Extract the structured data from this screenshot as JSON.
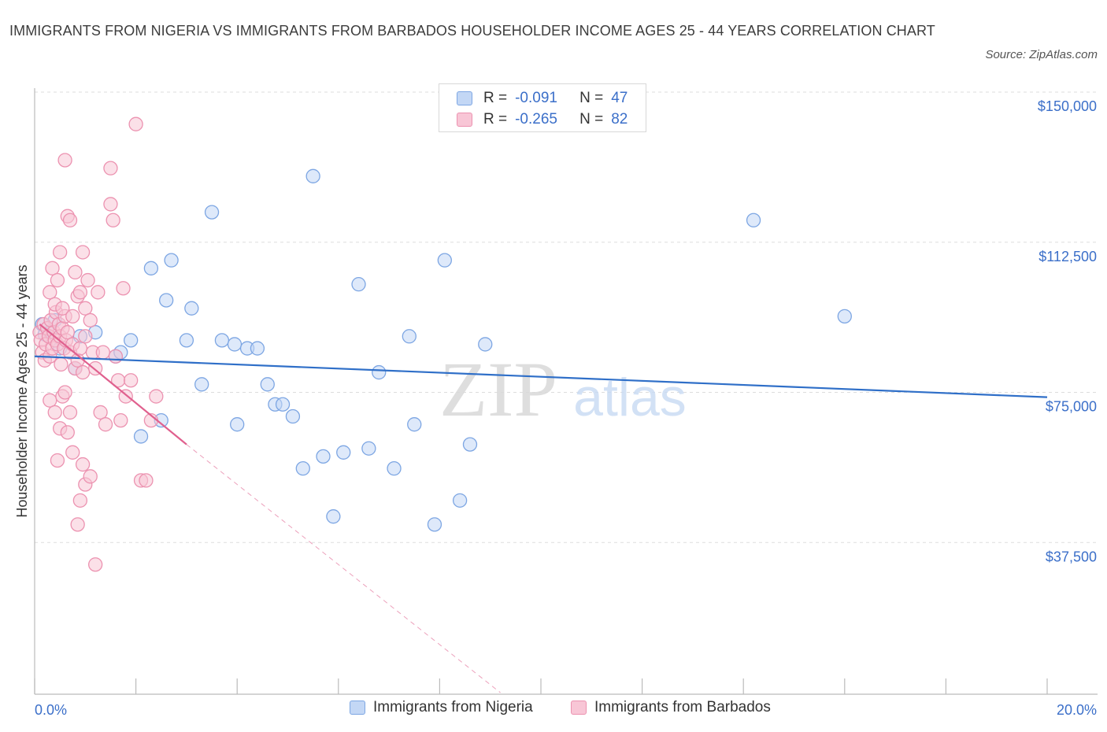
{
  "title": "IMMIGRANTS FROM NIGERIA VS IMMIGRANTS FROM BARBADOS HOUSEHOLDER INCOME AGES 25 - 44 YEARS CORRELATION CHART",
  "source": "Source: ZipAtlas.com",
  "watermark": {
    "zip": "ZIP",
    "atlas": "atlas"
  },
  "legend": {
    "rows": [
      {
        "r_label": "R =",
        "r_value": "-0.091",
        "n_label": "N =",
        "n_value": "47"
      },
      {
        "r_label": "R =",
        "r_value": "-0.265",
        "n_label": "N =",
        "n_value": "82"
      }
    ]
  },
  "bottom_legend": [
    "Immigrants from Nigeria",
    "Immigrants from Barbados"
  ],
  "colors": {
    "nigeria_fill": "#c3d7f5",
    "nigeria_stroke": "#7da6e3",
    "nigeria_line": "#2f6fc8",
    "barbados_fill": "#f8c6d6",
    "barbados_stroke": "#ec92b0",
    "barbados_line": "#e0608e",
    "tick_text": "#3b6fc9",
    "grid": "#dddddd"
  },
  "chart_data": {
    "type": "scatter",
    "title": "IMMIGRANTS FROM NIGERIA VS IMMIGRANTS FROM BARBADOS HOUSEHOLDER INCOME AGES 25 - 44 YEARS CORRELATION CHART",
    "xlabel": "",
    "ylabel": "Householder Income Ages 25 - 44 years",
    "xlim": [
      0,
      20
    ],
    "ylim": [
      0,
      150000
    ],
    "x_tick_labels": [
      {
        "value": 0,
        "label": "0.0%"
      },
      {
        "value": 20,
        "label": "20.0%"
      }
    ],
    "y_ticks": [
      {
        "value": 37500,
        "label": "$37,500"
      },
      {
        "value": 75000,
        "label": "$75,000"
      },
      {
        "value": 112500,
        "label": "$112,500"
      },
      {
        "value": 150000,
        "label": "$150,000"
      }
    ],
    "series": [
      {
        "name": "Immigrants from Nigeria",
        "points": [
          [
            0.15,
            92000
          ],
          [
            0.3,
            90000
          ],
          [
            0.4,
            93000
          ],
          [
            0.5,
            86000
          ],
          [
            0.8,
            81000
          ],
          [
            1.2,
            90000
          ],
          [
            0.9,
            89000
          ],
          [
            1.6,
            84000
          ],
          [
            1.7,
            85000
          ],
          [
            1.9,
            88000
          ],
          [
            2.1,
            64000
          ],
          [
            2.3,
            106000
          ],
          [
            2.5,
            68000
          ],
          [
            2.6,
            98000
          ],
          [
            2.7,
            108000
          ],
          [
            3.0,
            88000
          ],
          [
            3.1,
            96000
          ],
          [
            3.3,
            77000
          ],
          [
            3.5,
            120000
          ],
          [
            3.7,
            88000
          ],
          [
            3.95,
            87000
          ],
          [
            4.0,
            67000
          ],
          [
            4.2,
            86000
          ],
          [
            4.4,
            86000
          ],
          [
            4.6,
            77000
          ],
          [
            4.75,
            72000
          ],
          [
            4.9,
            72000
          ],
          [
            5.1,
            69000
          ],
          [
            5.3,
            56000
          ],
          [
            5.5,
            129000
          ],
          [
            5.7,
            59000
          ],
          [
            5.9,
            44000
          ],
          [
            6.1,
            60000
          ],
          [
            6.4,
            102000
          ],
          [
            6.6,
            61000
          ],
          [
            6.8,
            80000
          ],
          [
            7.1,
            56000
          ],
          [
            7.4,
            89000
          ],
          [
            7.5,
            67000
          ],
          [
            7.9,
            42000
          ],
          [
            8.1,
            108000
          ],
          [
            8.4,
            48000
          ],
          [
            8.6,
            62000
          ],
          [
            8.9,
            87000
          ],
          [
            14.2,
            118000
          ],
          [
            16.0,
            94000
          ],
          [
            0.2,
            89500
          ]
        ]
      },
      {
        "name": "Immigrants from Barbados",
        "points": [
          [
            0.1,
            90000
          ],
          [
            0.12,
            88000
          ],
          [
            0.15,
            85000
          ],
          [
            0.18,
            92000
          ],
          [
            0.2,
            83000
          ],
          [
            0.22,
            87000
          ],
          [
            0.25,
            91000
          ],
          [
            0.28,
            89000
          ],
          [
            0.3,
            84000
          ],
          [
            0.32,
            93000
          ],
          [
            0.35,
            86000
          ],
          [
            0.38,
            90000
          ],
          [
            0.4,
            88000
          ],
          [
            0.42,
            95000
          ],
          [
            0.45,
            87000
          ],
          [
            0.48,
            92000
          ],
          [
            0.5,
            89000
          ],
          [
            0.52,
            82000
          ],
          [
            0.55,
            91000
          ],
          [
            0.58,
            86000
          ],
          [
            0.6,
            94000
          ],
          [
            0.62,
            88000
          ],
          [
            0.65,
            90000
          ],
          [
            0.7,
            85000
          ],
          [
            0.75,
            87000
          ],
          [
            0.8,
            81000
          ],
          [
            0.85,
            83000
          ],
          [
            0.9,
            86000
          ],
          [
            0.95,
            80000
          ],
          [
            1.0,
            89000
          ],
          [
            0.3,
            100000
          ],
          [
            0.35,
            106000
          ],
          [
            0.4,
            97000
          ],
          [
            0.45,
            103000
          ],
          [
            0.5,
            110000
          ],
          [
            0.55,
            96000
          ],
          [
            0.6,
            133000
          ],
          [
            0.65,
            119000
          ],
          [
            0.7,
            118000
          ],
          [
            0.75,
            94000
          ],
          [
            0.8,
            105000
          ],
          [
            0.85,
            99000
          ],
          [
            0.9,
            100000
          ],
          [
            0.95,
            110000
          ],
          [
            1.0,
            96000
          ],
          [
            1.05,
            103000
          ],
          [
            1.1,
            93000
          ],
          [
            1.15,
            85000
          ],
          [
            1.2,
            81000
          ],
          [
            1.25,
            100000
          ],
          [
            1.3,
            70000
          ],
          [
            1.35,
            85000
          ],
          [
            1.4,
            67000
          ],
          [
            1.5,
            131000
          ],
          [
            1.5,
            122000
          ],
          [
            1.55,
            118000
          ],
          [
            1.6,
            84000
          ],
          [
            1.65,
            78000
          ],
          [
            1.7,
            68000
          ],
          [
            1.75,
            101000
          ],
          [
            1.8,
            74000
          ],
          [
            1.9,
            78000
          ],
          [
            2.0,
            142000
          ],
          [
            2.1,
            53000
          ],
          [
            2.2,
            53000
          ],
          [
            2.3,
            68000
          ],
          [
            2.4,
            74000
          ],
          [
            0.3,
            73000
          ],
          [
            0.4,
            70000
          ],
          [
            0.45,
            58000
          ],
          [
            0.5,
            66000
          ],
          [
            0.55,
            74000
          ],
          [
            0.6,
            75000
          ],
          [
            0.65,
            65000
          ],
          [
            0.7,
            70000
          ],
          [
            0.75,
            60000
          ],
          [
            0.85,
            42000
          ],
          [
            0.9,
            48000
          ],
          [
            0.95,
            57000
          ],
          [
            1.0,
            52000
          ],
          [
            1.1,
            54000
          ],
          [
            1.2,
            32000
          ]
        ]
      }
    ],
    "trend_lines": [
      {
        "series": "Immigrants from Nigeria",
        "x": [
          0,
          20
        ],
        "y": [
          84000,
          73800
        ],
        "style": "solid"
      },
      {
        "series": "Immigrants from Barbados",
        "x": [
          0.1,
          3.0
        ],
        "y": [
          92000,
          62000
        ],
        "style": "solid"
      },
      {
        "series": "Immigrants from Barbados",
        "x": [
          3.0,
          9.2
        ],
        "y": [
          62000,
          0
        ],
        "style": "dashed"
      }
    ]
  }
}
